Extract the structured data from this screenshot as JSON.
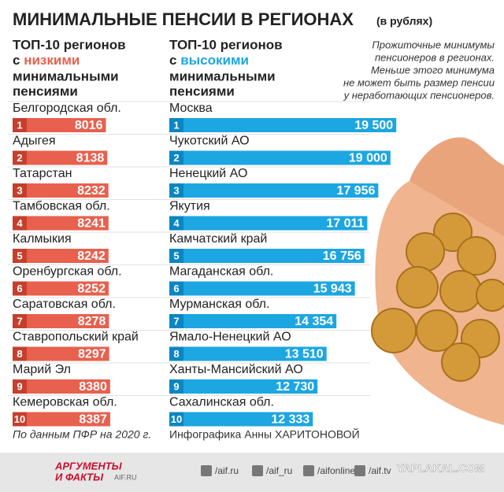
{
  "header": {
    "title": "МИНИМАЛЬНЫЕ ПЕНСИИ В РЕГИОНАХ",
    "unit": "(в рублях)"
  },
  "note": [
    "Прожиточные минимумы",
    "пенсионеров в регионах.",
    "Меньше этого минимума",
    "не может быть размер пенсии",
    "у неработающих пенсионеров."
  ],
  "chart_data": [
    {
      "type": "bar",
      "orientation": "horizontal",
      "title": [
        "ТОП-10 регионов",
        "с",
        "низкими",
        "минимальными",
        "пенсиями"
      ],
      "color": "#e8604e",
      "rank_color": "#c63f2c",
      "accent_color": "#e8604e",
      "ranks": [
        "1",
        "2",
        "3",
        "4",
        "5",
        "6",
        "7",
        "8",
        "9",
        "10"
      ],
      "categories": [
        "Белгородская обл.",
        "Адыгея",
        "Татарстан",
        "Тамбовская обл.",
        "Калмыкия",
        "Оренбургская обл.",
        "Саратовская обл.",
        "Ставропольский край",
        "Марий Эл",
        "Кемеровская обл."
      ],
      "values": [
        8016,
        8138,
        8232,
        8241,
        8242,
        8252,
        8278,
        8297,
        8380,
        8387
      ]
    },
    {
      "type": "bar",
      "orientation": "horizontal",
      "title": [
        "ТОП-10 регионов",
        "с",
        "высокими",
        "минимальными",
        "пенсиями"
      ],
      "color": "#1ca6e2",
      "rank_color": "#0a86c2",
      "accent_color": "#1ca6e2",
      "ranks": [
        "1",
        "2",
        "3",
        "4",
        "5",
        "6",
        "7",
        "8",
        "9",
        "10"
      ],
      "categories": [
        "Москва",
        "Чукотский АО",
        "Ненецкий АО",
        "Якутия",
        "Камчатский край",
        "Магаданская обл.",
        "Мурманская обл.",
        "Ямало-Ненецкий АО",
        "Ханты-Мансийский АО",
        "Сахалинская обл."
      ],
      "values": [
        19500,
        19000,
        17956,
        17011,
        16756,
        15943,
        14354,
        13510,
        12730,
        12333
      ],
      "value_labels": [
        "19 500",
        "19 000",
        "17 956",
        "17 011",
        "16 756",
        "15 943",
        "14 354",
        "13 510",
        "12 730",
        "12 333"
      ]
    }
  ],
  "footer": {
    "source": "По данным ПФР на 2020 г.",
    "credit": "Инфографика Анны ХАРИТОНОВОЙ"
  },
  "bottom_bar": {
    "logo_top": "АРГУМЕНТЫ",
    "logo_bottom": "И ФАКТЫ",
    "logo_site": "AIF.RU",
    "links": [
      "/aif.ru",
      "/aif_ru",
      "/aifonline",
      "/aif.tv"
    ],
    "watermark": "YAPLAKAL.COM"
  }
}
